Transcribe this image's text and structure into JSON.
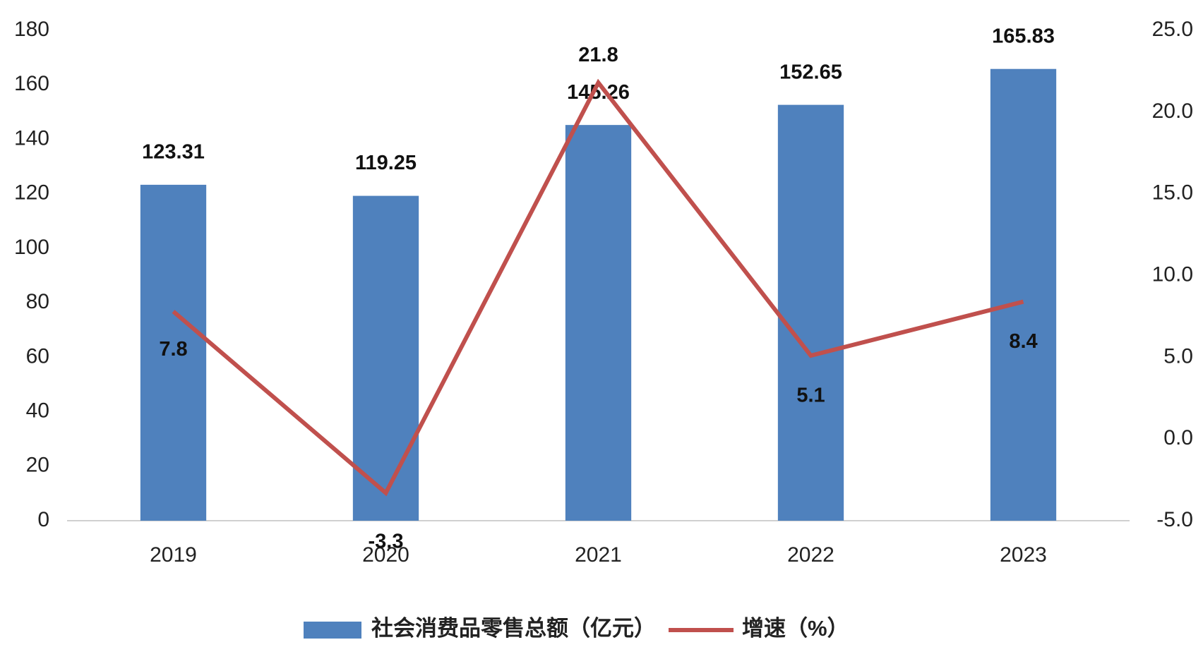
{
  "chart_data": {
    "type": "bar_line",
    "categories": [
      "2019",
      "2020",
      "2021",
      "2022",
      "2023"
    ],
    "series": [
      {
        "name": "社会消费品零售总额（亿元）",
        "type": "bar",
        "color": "#4f81bd",
        "values": [
          123.31,
          119.25,
          145.26,
          152.65,
          165.83
        ]
      },
      {
        "name": "增速（%）",
        "type": "line",
        "axis": "y2",
        "color": "#c0504d",
        "values": [
          7.8,
          -3.3,
          21.8,
          5.1,
          8.4
        ]
      }
    ],
    "ylim": [
      0,
      180
    ],
    "yticks": [
      0,
      20,
      40,
      60,
      80,
      100,
      120,
      140,
      160,
      180
    ],
    "y2lim": [
      -5,
      25
    ],
    "y2ticks": [
      {
        "value": -5,
        "label": "-5.0"
      },
      {
        "value": 0,
        "label": "0.0"
      },
      {
        "value": 5,
        "label": "5.0"
      },
      {
        "value": 10,
        "label": "10.0"
      },
      {
        "value": 15,
        "label": "15.0"
      },
      {
        "value": 20,
        "label": "20.0"
      },
      {
        "value": 25,
        "label": "25.0"
      }
    ],
    "grid": false,
    "legend": "bottom"
  }
}
